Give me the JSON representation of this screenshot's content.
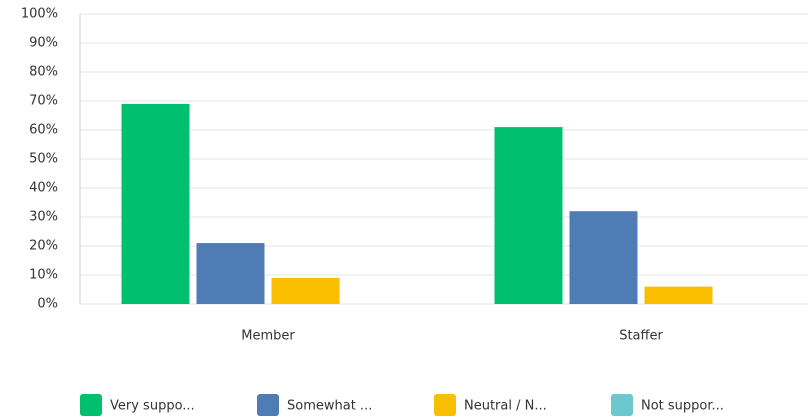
{
  "chart_data": {
    "type": "bar",
    "categories": [
      "Member",
      "Staffer"
    ],
    "series": [
      {
        "name": "Very suppo...",
        "color": "#00bf6f",
        "values": [
          69,
          61
        ]
      },
      {
        "name": "Somewhat ...",
        "color": "#507cb6",
        "values": [
          21,
          32
        ]
      },
      {
        "name": "Neutral / N...",
        "color": "#f9be00",
        "values": [
          9,
          6
        ]
      },
      {
        "name": "Not suppor...",
        "color": "#6bc8cd",
        "values": [
          0,
          0
        ]
      }
    ],
    "ylim": [
      0,
      100
    ],
    "yticks": [
      {
        "value": 0,
        "label": "0%"
      },
      {
        "value": 10,
        "label": "10%"
      },
      {
        "value": 20,
        "label": "20%"
      },
      {
        "value": 30,
        "label": "30%"
      },
      {
        "value": 40,
        "label": "40%"
      },
      {
        "value": 50,
        "label": "50%"
      },
      {
        "value": 60,
        "label": "60%"
      },
      {
        "value": 70,
        "label": "70%"
      },
      {
        "value": 80,
        "label": "80%"
      },
      {
        "value": 90,
        "label": "90%"
      },
      {
        "value": 100,
        "label": "100%"
      }
    ],
    "grid": true,
    "legend": "bottom"
  }
}
